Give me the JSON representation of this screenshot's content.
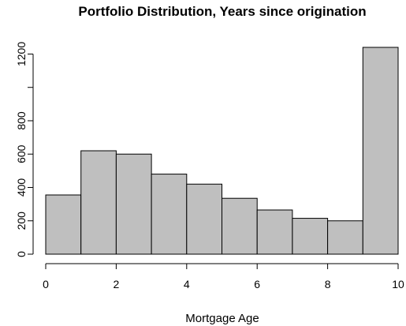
{
  "chart_data": {
    "type": "bar",
    "title": "Portfolio Distribution, Years since origination",
    "xlabel": "Mortgage Age",
    "ylabel": "",
    "bins": [
      {
        "start": 0,
        "end": 1,
        "value": 355
      },
      {
        "start": 1,
        "end": 2,
        "value": 620
      },
      {
        "start": 2,
        "end": 3,
        "value": 600
      },
      {
        "start": 3,
        "end": 4,
        "value": 480
      },
      {
        "start": 4,
        "end": 5,
        "value": 420
      },
      {
        "start": 5,
        "end": 6,
        "value": 335
      },
      {
        "start": 6,
        "end": 7,
        "value": 265
      },
      {
        "start": 7,
        "end": 8,
        "value": 215
      },
      {
        "start": 8,
        "end": 9,
        "value": 200
      },
      {
        "start": 9,
        "end": 10,
        "value": 1240
      }
    ],
    "xlim": [
      0,
      10
    ],
    "ylim": [
      0,
      1240
    ],
    "x_ticks": [
      0,
      2,
      4,
      6,
      8,
      10
    ],
    "x_tick_labels": [
      "0",
      "2",
      "4",
      "6",
      "8",
      "10"
    ],
    "y_ticks": [
      0,
      200,
      400,
      600,
      800,
      1000,
      1200
    ],
    "y_tick_labels": [
      "0",
      "200",
      "400",
      "600",
      "800",
      "",
      "1200"
    ],
    "bar_fill": "#bfbfbf",
    "bar_stroke": "#000000",
    "grid": false,
    "legend": "none"
  }
}
